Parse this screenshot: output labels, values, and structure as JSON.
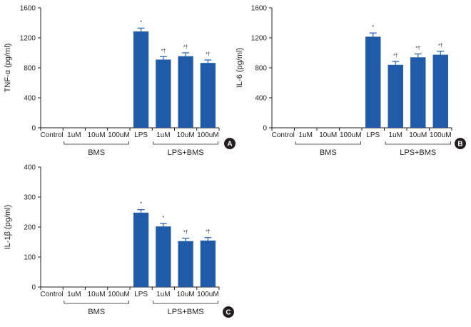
{
  "chart_data": [
    {
      "type": "bar",
      "panel": "A",
      "ylabel": "TNF-α (pg/ml)",
      "ylim": [
        0,
        1600
      ],
      "yticks": [
        0,
        400,
        800,
        1200,
        1600
      ],
      "categories": [
        "Control",
        "1uM",
        "10uM",
        "100uM",
        "LPS",
        "1uM",
        "10uM",
        "100uM"
      ],
      "values": [
        0,
        0,
        0,
        0,
        1285,
        910,
        955,
        865
      ],
      "errors": [
        0,
        0,
        0,
        0,
        45,
        40,
        45,
        40
      ],
      "annotations": [
        "",
        "",
        "",
        "",
        "*",
        "*†",
        "*†",
        "*†"
      ],
      "groups": [
        {
          "label": "BMS",
          "from": 1,
          "to": 3
        },
        {
          "label": "LPS+BMS",
          "from": 5,
          "to": 7
        }
      ],
      "bar_color": "#1f5ba8"
    },
    {
      "type": "bar",
      "panel": "B",
      "ylabel": "IL-6 (pg/ml)",
      "ylim": [
        0,
        1600
      ],
      "yticks": [
        0,
        400,
        800,
        1200,
        1600
      ],
      "categories": [
        "Control",
        "1uM",
        "10uM",
        "100uM",
        "LPS",
        "1uM",
        "10uM",
        "100uM"
      ],
      "values": [
        0,
        0,
        0,
        0,
        1215,
        840,
        940,
        975
      ],
      "errors": [
        0,
        0,
        0,
        0,
        50,
        45,
        45,
        45
      ],
      "annotations": [
        "",
        "",
        "",
        "",
        "*",
        "*†",
        "*†",
        "*†"
      ],
      "groups": [
        {
          "label": "BMS",
          "from": 1,
          "to": 3
        },
        {
          "label": "LPS+BMS",
          "from": 5,
          "to": 7
        }
      ],
      "bar_color": "#1f5ba8"
    },
    {
      "type": "bar",
      "panel": "C",
      "ylabel": "IL-1β (pg/ml)",
      "ylim": [
        0,
        400
      ],
      "yticks": [
        0,
        100,
        200,
        300,
        400
      ],
      "categories": [
        "Control",
        "1uM",
        "10uM",
        "100uM",
        "LPS",
        "1uM",
        "10uM",
        "100uM"
      ],
      "values": [
        0,
        0,
        0,
        0,
        248,
        202,
        153,
        155
      ],
      "errors": [
        0,
        0,
        0,
        0,
        10,
        10,
        10,
        10
      ],
      "annotations": [
        "",
        "",
        "",
        "",
        "*",
        "*",
        "*†",
        "*†"
      ],
      "groups": [
        {
          "label": "BMS",
          "from": 1,
          "to": 3
        },
        {
          "label": "LPS+BMS",
          "from": 5,
          "to": 7
        }
      ],
      "bar_color": "#1f5ba8"
    }
  ]
}
